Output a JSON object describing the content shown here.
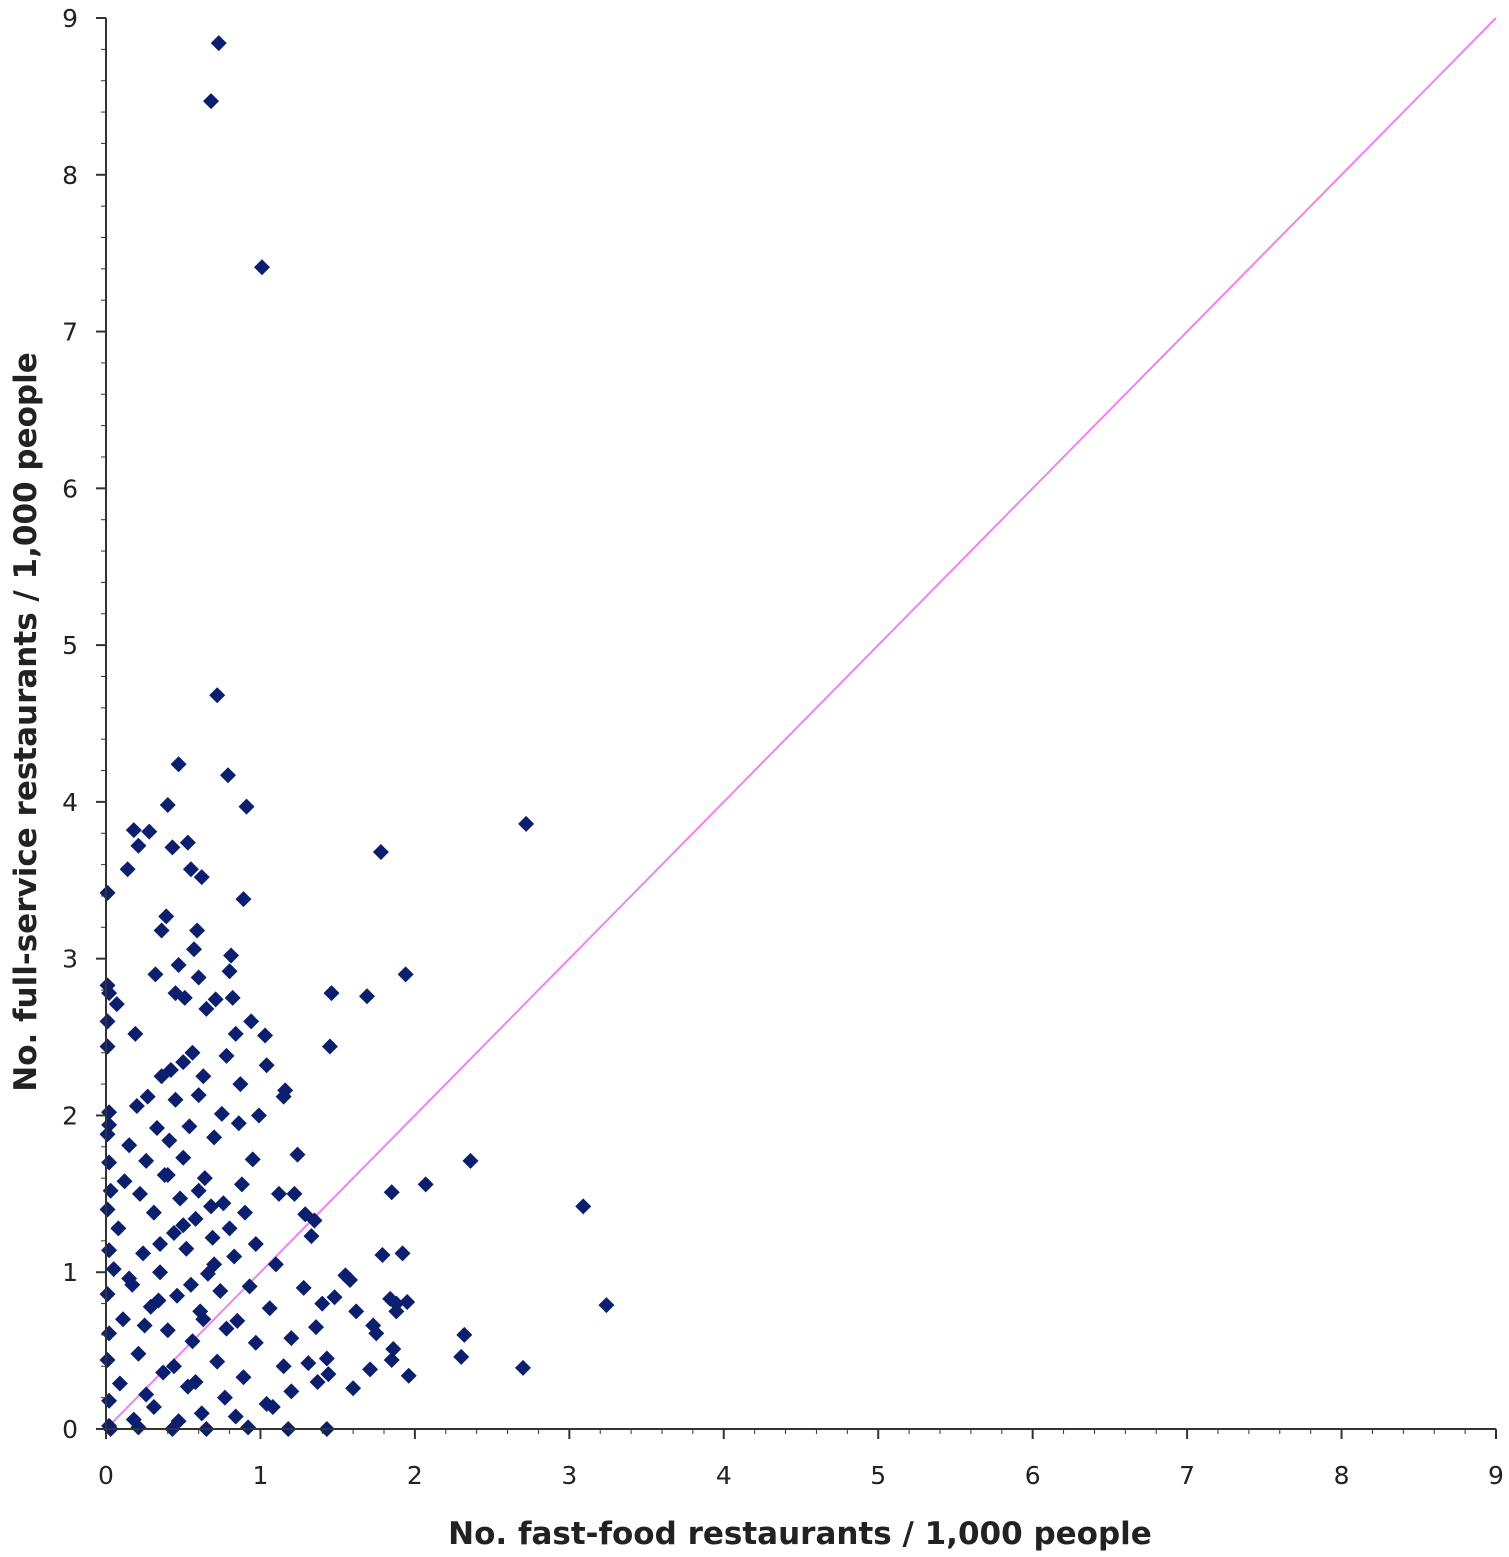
{
  "chart_data": {
    "type": "scatter",
    "xlabel": "No. fast-food restaurants / 1,000 people",
    "ylabel": "No. full-service restaurants / 1,000 people",
    "xlim": [
      0,
      9
    ],
    "ylim": [
      0,
      9
    ],
    "x_ticks": [
      "0",
      "1",
      "2",
      "3",
      "4",
      "5",
      "6",
      "7",
      "8",
      "9"
    ],
    "y_ticks": [
      "0",
      "1",
      "2",
      "3",
      "4",
      "5",
      "6",
      "7",
      "8",
      "9"
    ],
    "grid": false,
    "legend": "none",
    "reference_line": {
      "from": [
        0,
        0
      ],
      "to": [
        9,
        9
      ],
      "color": "#ee82ee"
    },
    "marker_color": "#0b1f6e",
    "marker": "diamond",
    "series": [
      {
        "points": [
          [
            0.73,
            8.84
          ],
          [
            0.68,
            8.47
          ],
          [
            1.01,
            7.41
          ],
          [
            0.72,
            4.68
          ],
          [
            0.47,
            4.24
          ],
          [
            0.79,
            4.17
          ],
          [
            0.4,
            3.98
          ],
          [
            0.91,
            3.97
          ],
          [
            2.72,
            3.86
          ],
          [
            0.18,
            3.82
          ],
          [
            0.28,
            3.81
          ],
          [
            0.21,
            3.72
          ],
          [
            0.53,
            3.74
          ],
          [
            0.43,
            3.71
          ],
          [
            1.78,
            3.68
          ],
          [
            0.14,
            3.57
          ],
          [
            0.55,
            3.57
          ],
          [
            0.62,
            3.52
          ],
          [
            0.89,
            3.38
          ],
          [
            0.01,
            3.42
          ],
          [
            0.39,
            3.27
          ],
          [
            0.36,
            3.18
          ],
          [
            0.59,
            3.18
          ],
          [
            0.57,
            3.06
          ],
          [
            0.81,
            3.02
          ],
          [
            0.47,
            2.96
          ],
          [
            0.32,
            2.9
          ],
          [
            1.94,
            2.9
          ],
          [
            0.8,
            2.92
          ],
          [
            0.6,
            2.88
          ],
          [
            0.01,
            2.83
          ],
          [
            0.02,
            2.78
          ],
          [
            0.45,
            2.78
          ],
          [
            1.46,
            2.78
          ],
          [
            1.69,
            2.76
          ],
          [
            0.82,
            2.75
          ],
          [
            0.71,
            2.74
          ],
          [
            0.51,
            2.75
          ],
          [
            0.07,
            2.71
          ],
          [
            0.65,
            2.68
          ],
          [
            0.01,
            2.6
          ],
          [
            0.94,
            2.6
          ],
          [
            0.19,
            2.52
          ],
          [
            0.84,
            2.52
          ],
          [
            1.03,
            2.51
          ],
          [
            0.01,
            2.44
          ],
          [
            1.45,
            2.44
          ],
          [
            0.56,
            2.4
          ],
          [
            0.78,
            2.38
          ],
          [
            0.5,
            2.34
          ],
          [
            1.04,
            2.32
          ],
          [
            0.42,
            2.29
          ],
          [
            0.36,
            2.25
          ],
          [
            0.63,
            2.25
          ],
          [
            0.87,
            2.2
          ],
          [
            1.16,
            2.16
          ],
          [
            0.27,
            2.12
          ],
          [
            0.45,
            2.1
          ],
          [
            0.6,
            2.13
          ],
          [
            1.15,
            2.12
          ],
          [
            0.02,
            2.02
          ],
          [
            0.2,
            2.06
          ],
          [
            0.75,
            2.01
          ],
          [
            0.99,
            2.0
          ],
          [
            0.02,
            1.94
          ],
          [
            0.01,
            1.88
          ],
          [
            0.33,
            1.92
          ],
          [
            0.54,
            1.93
          ],
          [
            0.86,
            1.95
          ],
          [
            0.15,
            1.81
          ],
          [
            0.41,
            1.84
          ],
          [
            0.7,
            1.86
          ],
          [
            1.24,
            1.75
          ],
          [
            2.36,
            1.71
          ],
          [
            0.02,
            1.7
          ],
          [
            0.26,
            1.71
          ],
          [
            0.5,
            1.73
          ],
          [
            0.95,
            1.72
          ],
          [
            0.12,
            1.58
          ],
          [
            0.38,
            1.62
          ],
          [
            0.64,
            1.6
          ],
          [
            0.88,
            1.56
          ],
          [
            2.07,
            1.56
          ],
          [
            0.03,
            1.52
          ],
          [
            0.22,
            1.5
          ],
          [
            1.12,
            1.5
          ],
          [
            1.22,
            1.5
          ],
          [
            1.85,
            1.51
          ],
          [
            0.48,
            1.47
          ],
          [
            0.76,
            1.44
          ],
          [
            3.09,
            1.42
          ],
          [
            0.01,
            1.4
          ],
          [
            0.31,
            1.38
          ],
          [
            1.29,
            1.37
          ],
          [
            1.35,
            1.33
          ],
          [
            0.58,
            1.34
          ],
          [
            1.33,
            1.23
          ],
          [
            0.08,
            1.28
          ],
          [
            0.44,
            1.25
          ],
          [
            0.69,
            1.22
          ],
          [
            0.97,
            1.18
          ],
          [
            0.02,
            1.14
          ],
          [
            0.24,
            1.12
          ],
          [
            0.52,
            1.15
          ],
          [
            0.83,
            1.1
          ],
          [
            1.79,
            1.11
          ],
          [
            1.92,
            1.12
          ],
          [
            1.1,
            1.05
          ],
          [
            0.05,
            1.02
          ],
          [
            0.35,
            1.0
          ],
          [
            0.66,
            0.99
          ],
          [
            1.55,
            0.98
          ],
          [
            1.58,
            0.95
          ],
          [
            0.17,
            0.92
          ],
          [
            0.93,
            0.91
          ],
          [
            1.28,
            0.9
          ],
          [
            0.01,
            0.86
          ],
          [
            0.46,
            0.85
          ],
          [
            0.74,
            0.88
          ],
          [
            1.84,
            0.83
          ],
          [
            1.88,
            0.8
          ],
          [
            1.95,
            0.81
          ],
          [
            1.48,
            0.84
          ],
          [
            3.24,
            0.79
          ],
          [
            0.29,
            0.78
          ],
          [
            1.4,
            0.8
          ],
          [
            1.06,
            0.77
          ],
          [
            0.61,
            0.75
          ],
          [
            1.62,
            0.75
          ],
          [
            1.88,
            0.75
          ],
          [
            0.11,
            0.7
          ],
          [
            0.85,
            0.69
          ],
          [
            1.73,
            0.66
          ],
          [
            1.36,
            0.65
          ],
          [
            0.4,
            0.63
          ],
          [
            0.02,
            0.61
          ],
          [
            1.75,
            0.61
          ],
          [
            2.32,
            0.6
          ],
          [
            1.2,
            0.58
          ],
          [
            0.56,
            0.56
          ],
          [
            0.97,
            0.55
          ],
          [
            1.86,
            0.51
          ],
          [
            0.21,
            0.48
          ],
          [
            1.43,
            0.45
          ],
          [
            2.3,
            0.46
          ],
          [
            0.01,
            0.44
          ],
          [
            0.72,
            0.43
          ],
          [
            1.85,
            0.44
          ],
          [
            1.31,
            0.42
          ],
          [
            1.15,
            0.4
          ],
          [
            1.71,
            0.38
          ],
          [
            2.7,
            0.39
          ],
          [
            0.37,
            0.36
          ],
          [
            1.44,
            0.35
          ],
          [
            1.96,
            0.34
          ],
          [
            0.89,
            0.33
          ],
          [
            1.37,
            0.3
          ],
          [
            0.09,
            0.29
          ],
          [
            0.53,
            0.27
          ],
          [
            1.6,
            0.26
          ],
          [
            1.2,
            0.24
          ],
          [
            0.77,
            0.2
          ],
          [
            0.02,
            0.18
          ],
          [
            1.04,
            0.16
          ],
          [
            0.31,
            0.14
          ],
          [
            1.08,
            0.14
          ],
          [
            0.62,
            0.1
          ],
          [
            0.84,
            0.08
          ],
          [
            0.18,
            0.06
          ],
          [
            0.47,
            0.05
          ],
          [
            0.02,
            0.02
          ],
          [
            0.03,
            0.0
          ],
          [
            0.21,
            0.01
          ],
          [
            0.43,
            0.0
          ],
          [
            0.65,
            0.0
          ],
          [
            0.92,
            0.01
          ],
          [
            1.18,
            0.0
          ],
          [
            1.43,
            0.0
          ],
          [
            0.25,
            0.66
          ],
          [
            0.34,
            0.82
          ],
          [
            0.55,
            0.92
          ],
          [
            0.63,
            0.7
          ],
          [
            0.7,
            1.05
          ],
          [
            0.78,
            0.64
          ],
          [
            0.44,
            0.4
          ],
          [
            0.5,
            1.3
          ],
          [
            0.6,
            1.52
          ],
          [
            0.35,
            1.18
          ],
          [
            0.15,
            0.96
          ],
          [
            0.26,
            0.22
          ],
          [
            0.8,
            1.28
          ],
          [
            0.58,
            0.3
          ],
          [
            0.4,
            1.62
          ],
          [
            0.68,
            1.42
          ],
          [
            0.9,
            1.38
          ]
        ]
      }
    ]
  }
}
